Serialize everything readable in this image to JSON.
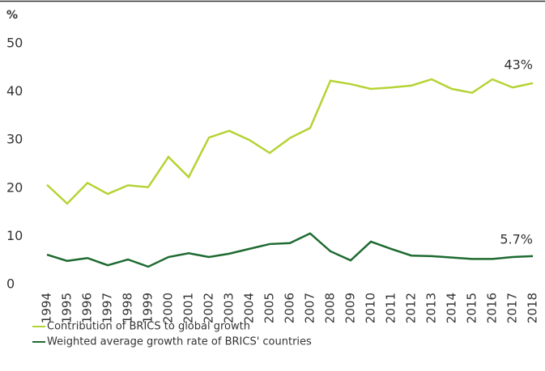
{
  "chart_data": {
    "type": "line",
    "y_label": "%",
    "categories": [
      "1994",
      "1995",
      "1996",
      "1997",
      "1998",
      "1999",
      "2000",
      "2001",
      "2002",
      "2003",
      "2004",
      "2005",
      "2006",
      "2007",
      "2008",
      "2009",
      "2010",
      "2011",
      "2012",
      "2013",
      "2014",
      "2015",
      "2016",
      "2017",
      "2018"
    ],
    "series": [
      {
        "name": "Contribution of BRICS to global growth",
        "color": "#b5d334",
        "values": [
          20.7,
          16.8,
          21.1,
          18.8,
          20.6,
          20.2,
          26.5,
          22.3,
          30.5,
          31.9,
          30.0,
          27.3,
          30.4,
          32.5,
          42.3,
          41.6,
          40.6,
          40.9,
          41.3,
          42.6,
          40.6,
          39.8,
          42.6,
          40.9,
          41.8
        ]
      },
      {
        "name": "Weighted average growth rate of BRICS' countries",
        "color": "#1d6a30",
        "values": [
          6.2,
          4.9,
          5.5,
          4.0,
          5.2,
          3.7,
          5.7,
          6.5,
          5.7,
          6.4,
          7.4,
          8.4,
          8.6,
          10.6,
          6.9,
          5.0,
          8.9,
          7.4,
          6.0,
          5.9,
          5.6,
          5.3,
          5.3,
          5.7,
          5.9
        ]
      }
    ],
    "annotations": [
      "43%",
      "5.7%"
    ],
    "ylim": [
      0,
      50
    ],
    "yticks": [
      0,
      10,
      20,
      30,
      40,
      50
    ]
  }
}
